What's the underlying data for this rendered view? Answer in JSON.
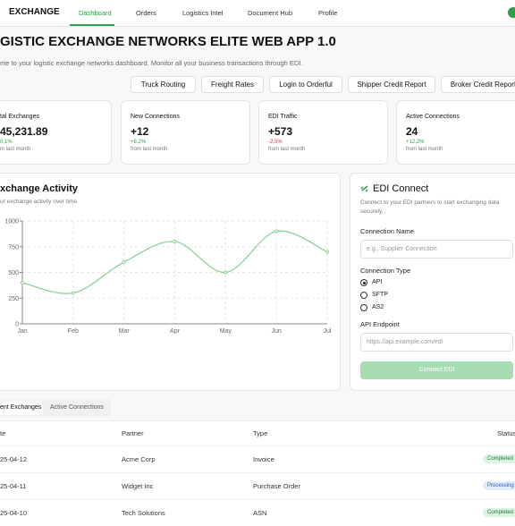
{
  "navbar": {
    "brand": "EXCHANGE",
    "items": [
      "Dashboard",
      "Orders",
      "Logistics Intel",
      "Document Hub",
      "Profile"
    ]
  },
  "header": {
    "title": "GISTIC EXCHANGE NETWORKS  ELITE WEB APP 1.0",
    "subtitle": "me to your logistic exchange networks  dashboard. Monitor all your business transactions through EDI."
  },
  "actions": [
    "Truck Routing",
    "Freight Rates",
    "Login to Orderful",
    "Shipper Credit Report",
    "Broker Credit Report"
  ],
  "stats": [
    {
      "label": "tal Exchanges",
      "value": "45,231.89",
      "change": "0.1%",
      "note": "m last month"
    },
    {
      "label": "New Connections",
      "value": "+12",
      "change": "+8.2%",
      "note": "from last month"
    },
    {
      "label": "EDI Traffic",
      "value": "+573",
      "change": "-2.5%",
      "note": "from last month"
    },
    {
      "label": "Active Connections",
      "value": "24",
      "change": "+12.2%",
      "note": "from last month"
    }
  ],
  "chart_data": {
    "type": "line",
    "title": "xchange Activity",
    "subtitle": "ur exchange activity over time.",
    "categories": [
      "Jan",
      "Feb",
      "Mar",
      "Apr",
      "May",
      "Jun",
      "Jul"
    ],
    "series": [
      {
        "color": "#8fd19a",
        "values": [
          400,
          300,
          600,
          800,
          500,
          900,
          700
        ]
      }
    ],
    "ylim": [
      0,
      1000
    ],
    "yticks": [
      0,
      250,
      500,
      750,
      1000
    ],
    "grid": true
  },
  "edi_connect": {
    "title": "EDI Connect",
    "description": "Connect to your EDI partners to start exchanging data securely.",
    "name_label": "Connection Name",
    "name_placeholder": "e.g., Supplier Connection",
    "type_label": "Connection Type",
    "types": [
      "API",
      "SFTP",
      "AS2"
    ],
    "endpoint_label": "API Endpoint",
    "endpoint_placeholder": "https://api.example.com/edi",
    "button": "Connect EDI"
  },
  "tabs": [
    "ent Exchanges",
    "Active Connections"
  ],
  "table": {
    "columns": [
      "te",
      "Partner",
      "Type",
      "Status"
    ],
    "rows": [
      [
        "25-04-12",
        "Acme Corp",
        "Invoice",
        "Completed"
      ],
      [
        "25-04-11",
        "Widget Inc",
        "Purchase Order",
        "Processing"
      ],
      [
        "25-04-10",
        "Tech Solutions",
        "ASN",
        "Completed"
      ]
    ]
  }
}
